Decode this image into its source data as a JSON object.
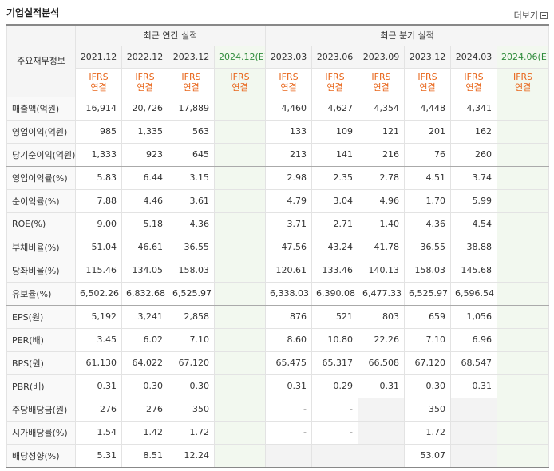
{
  "section_title": "기업실적분석",
  "more_label": "더보기",
  "row_header_label": "주요재무정보",
  "annual_header": "최근 연간 실적",
  "quarter_header": "최근 분기 실적",
  "annual_periods": [
    {
      "label": "2021.12",
      "est": ""
    },
    {
      "label": "2022.12",
      "est": ""
    },
    {
      "label": "2023.12",
      "est": ""
    },
    {
      "label": "2024.12",
      "est": "(E)"
    }
  ],
  "quarter_periods": [
    {
      "label": "2023.03",
      "est": ""
    },
    {
      "label": "2023.06",
      "est": ""
    },
    {
      "label": "2023.09",
      "est": ""
    },
    {
      "label": "2023.12",
      "est": ""
    },
    {
      "label": "2024.03",
      "est": ""
    },
    {
      "label": "2024.06",
      "est": "(E)"
    }
  ],
  "ifrs_line1": "IFRS",
  "ifrs_line2": "연결",
  "rows": [
    {
      "label": "매출액(억원)",
      "annual": [
        "16,914",
        "20,726",
        "17,889",
        ""
      ],
      "quarter": [
        "4,460",
        "4,627",
        "4,354",
        "4,448",
        "4,341",
        ""
      ]
    },
    {
      "label": "영업이익(억원)",
      "annual": [
        "985",
        "1,335",
        "563",
        ""
      ],
      "quarter": [
        "133",
        "109",
        "121",
        "201",
        "162",
        ""
      ]
    },
    {
      "label": "당기순이익(억원)",
      "annual": [
        "1,333",
        "923",
        "645",
        ""
      ],
      "quarter": [
        "213",
        "141",
        "216",
        "76",
        "260",
        ""
      ]
    },
    {
      "label": "영업이익률(%)",
      "annual": [
        "5.83",
        "6.44",
        "3.15",
        ""
      ],
      "quarter": [
        "2.98",
        "2.35",
        "2.78",
        "4.51",
        "3.74",
        ""
      ]
    },
    {
      "label": "순이익률(%)",
      "annual": [
        "7.88",
        "4.46",
        "3.61",
        ""
      ],
      "quarter": [
        "4.79",
        "3.04",
        "4.96",
        "1.70",
        "5.99",
        ""
      ]
    },
    {
      "label": "ROE(%)",
      "annual": [
        "9.00",
        "5.18",
        "4.36",
        ""
      ],
      "quarter": [
        "3.71",
        "2.71",
        "1.40",
        "4.36",
        "4.54",
        ""
      ]
    },
    {
      "label": "부채비율(%)",
      "annual": [
        "51.04",
        "46.61",
        "36.55",
        ""
      ],
      "quarter": [
        "47.56",
        "43.24",
        "41.78",
        "36.55",
        "38.88",
        ""
      ]
    },
    {
      "label": "당좌비율(%)",
      "annual": [
        "115.46",
        "134.05",
        "158.03",
        ""
      ],
      "quarter": [
        "120.61",
        "133.46",
        "140.13",
        "158.03",
        "145.68",
        ""
      ]
    },
    {
      "label": "유보율(%)",
      "annual": [
        "6,502.26",
        "6,832.68",
        "6,525.97",
        ""
      ],
      "quarter": [
        "6,338.03",
        "6,390.08",
        "6,477.33",
        "6,525.97",
        "6,596.54",
        ""
      ]
    },
    {
      "label": "EPS(원)",
      "annual": [
        "5,192",
        "3,241",
        "2,858",
        ""
      ],
      "quarter": [
        "876",
        "521",
        "803",
        "659",
        "1,056",
        ""
      ]
    },
    {
      "label": "PER(배)",
      "annual": [
        "3.45",
        "6.02",
        "7.10",
        ""
      ],
      "quarter": [
        "8.60",
        "10.80",
        "22.26",
        "7.10",
        "6.96",
        ""
      ]
    },
    {
      "label": "BPS(원)",
      "annual": [
        "61,130",
        "64,022",
        "67,120",
        ""
      ],
      "quarter": [
        "65,475",
        "65,317",
        "66,508",
        "67,120",
        "68,547",
        ""
      ]
    },
    {
      "label": "PBR(배)",
      "annual": [
        "0.31",
        "0.30",
        "0.30",
        ""
      ],
      "quarter": [
        "0.31",
        "0.29",
        "0.31",
        "0.30",
        "0.31",
        ""
      ]
    },
    {
      "label": "주당배당금(원)",
      "annual": [
        "276",
        "276",
        "350",
        ""
      ],
      "quarter": [
        "-",
        "-",
        null,
        "350",
        null,
        ""
      ]
    },
    {
      "label": "시가배당률(%)",
      "annual": [
        "1.54",
        "1.42",
        "1.72",
        ""
      ],
      "quarter": [
        "-",
        "-",
        null,
        "1.72",
        null,
        ""
      ]
    },
    {
      "label": "배당성향(%)",
      "annual": [
        "5.31",
        "8.51",
        "12.24",
        ""
      ],
      "quarter": [
        null,
        null,
        null,
        "53.07",
        null,
        ""
      ]
    }
  ]
}
